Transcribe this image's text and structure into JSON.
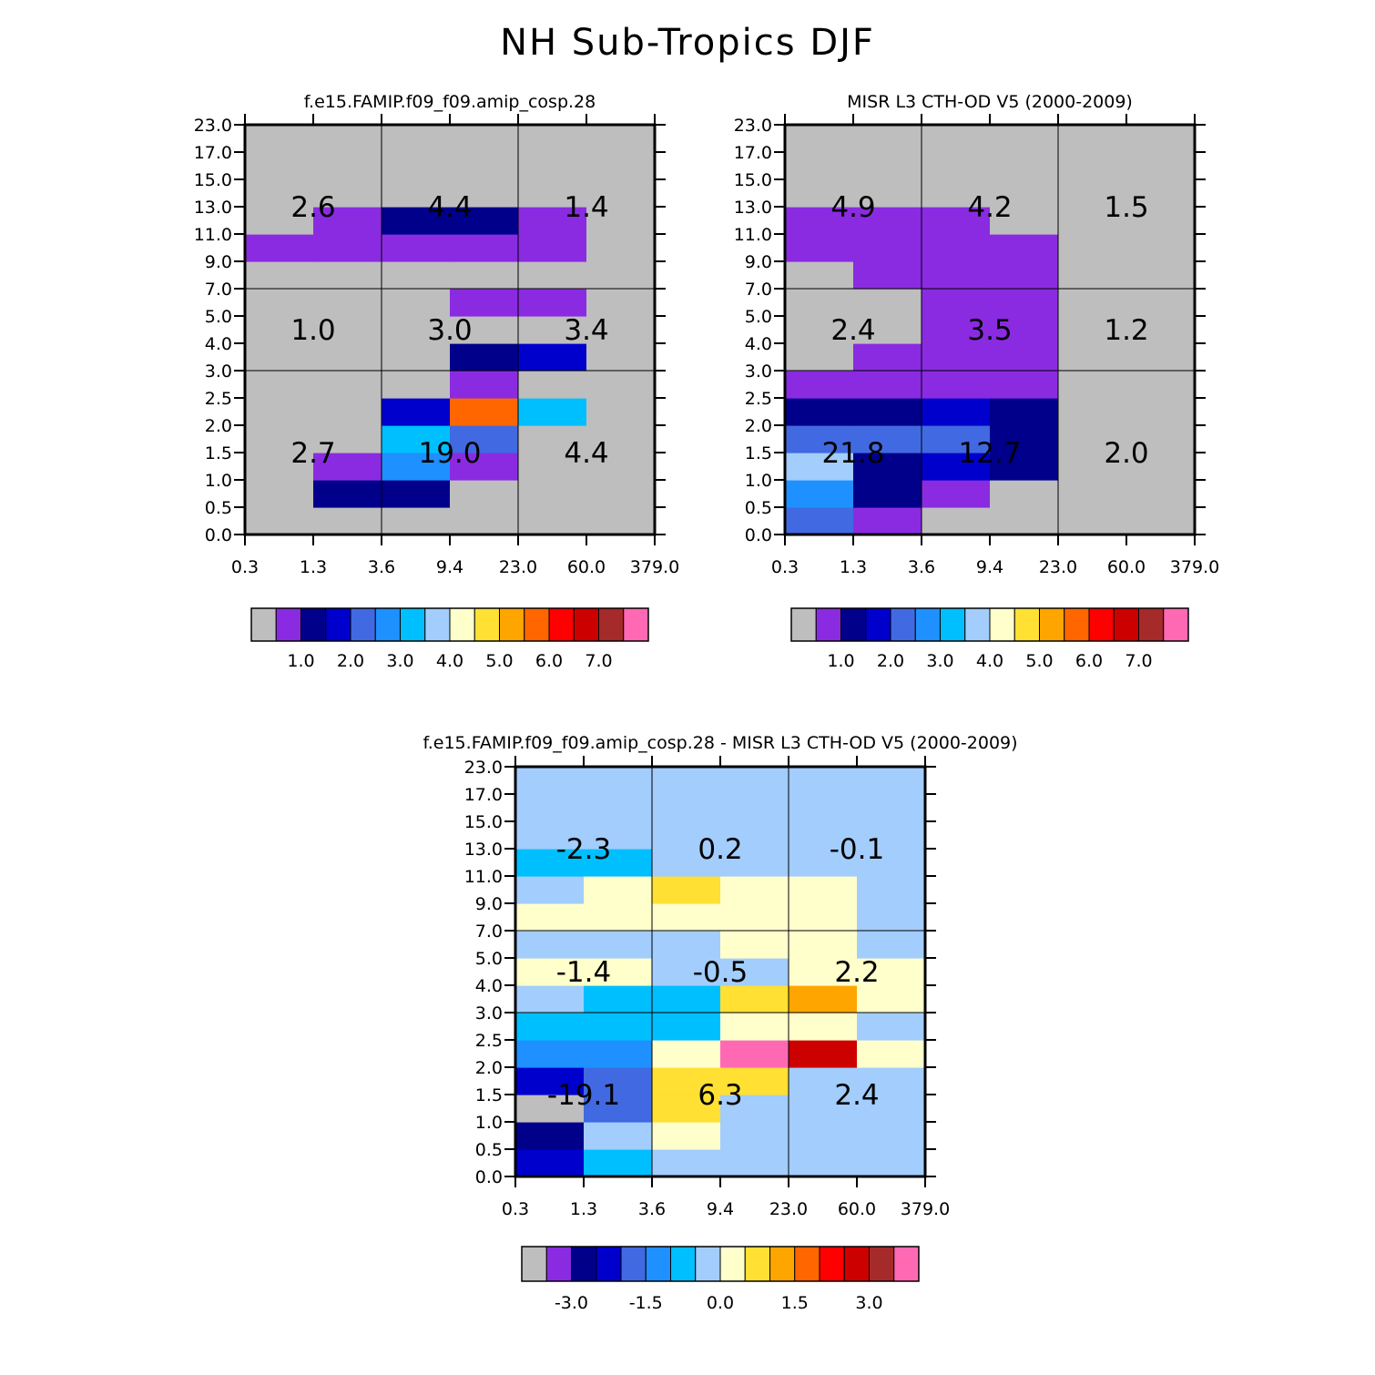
{
  "title": "NH Sub-Tropics DJF",
  "palette": [
    "#bebebe",
    "#8a2be2",
    "#00008b",
    "#0000cd",
    "#4169e1",
    "#1e90ff",
    "#00bfff",
    "#a2cdfc",
    "#ffffcc",
    "#ffe033",
    "#ffa500",
    "#ff6600",
    "#ff0000",
    "#cd0000",
    "#a52a2a",
    "#ff69b4"
  ],
  "chart_data": [
    {
      "type": "heatmap",
      "title": "f.e15.FAMIP.f09_f09.amip_cosp.28",
      "x_ticks": [
        "0.3",
        "1.3",
        "3.6",
        "9.4",
        "23.0",
        "60.0",
        "379.0"
      ],
      "y_ticks": [
        "0.0",
        "0.5",
        "1.0",
        "1.5",
        "2.0",
        "2.5",
        "3.0",
        "4.0",
        "5.0",
        "7.0",
        "9.0",
        "11.0",
        "13.0",
        "15.0",
        "17.0",
        "23.0"
      ],
      "cells_color_index_rows_bottom_to_top": [
        [
          0,
          0,
          0,
          0,
          0,
          0
        ],
        [
          0,
          2,
          2,
          0,
          0,
          0
        ],
        [
          0,
          1,
          5,
          1,
          0,
          0
        ],
        [
          0,
          0,
          6,
          4,
          0,
          0
        ],
        [
          0,
          0,
          3,
          11,
          6,
          0
        ],
        [
          0,
          0,
          0,
          1,
          0,
          0
        ],
        [
          0,
          0,
          0,
          2,
          3,
          0
        ],
        [
          0,
          0,
          0,
          0,
          0,
          0
        ],
        [
          0,
          0,
          0,
          1,
          1,
          0
        ],
        [
          0,
          0,
          0,
          0,
          0,
          0
        ],
        [
          1,
          1,
          1,
          1,
          1,
          0
        ],
        [
          0,
          1,
          2,
          2,
          1,
          0
        ],
        [
          0,
          0,
          0,
          0,
          0,
          0
        ],
        [
          0,
          0,
          0,
          0,
          0,
          0
        ],
        [
          0,
          0,
          0,
          0,
          0,
          0
        ]
      ],
      "block_totals": [
        [
          "2.7",
          "19.0",
          "4.4"
        ],
        [
          "1.0",
          "3.0",
          "3.4"
        ],
        [
          "2.6",
          "4.4",
          "1.4"
        ]
      ],
      "colorbar": {
        "n_boxes": 16,
        "labels": [
          "1.0",
          "2.0",
          "3.0",
          "4.0",
          "5.0",
          "6.0",
          "7.0"
        ],
        "first_label_boundary": 2
      }
    },
    {
      "type": "heatmap",
      "title": "MISR L3 CTH-OD V5 (2000-2009)",
      "x_ticks": [
        "0.3",
        "1.3",
        "3.6",
        "9.4",
        "23.0",
        "60.0",
        "379.0"
      ],
      "y_ticks": [
        "0.0",
        "0.5",
        "1.0",
        "1.5",
        "2.0",
        "2.5",
        "3.0",
        "4.0",
        "5.0",
        "7.0",
        "9.0",
        "11.0",
        "13.0",
        "15.0",
        "17.0",
        "23.0"
      ],
      "cells_color_index_rows_bottom_to_top": [
        [
          4,
          1,
          0,
          0,
          0,
          0
        ],
        [
          5,
          2,
          1,
          0,
          0,
          0
        ],
        [
          7,
          2,
          3,
          2,
          0,
          0
        ],
        [
          4,
          4,
          4,
          2,
          0,
          0
        ],
        [
          2,
          2,
          3,
          2,
          0,
          0
        ],
        [
          1,
          1,
          1,
          1,
          0,
          0
        ],
        [
          0,
          1,
          1,
          1,
          0,
          0
        ],
        [
          0,
          0,
          1,
          1,
          0,
          0
        ],
        [
          0,
          0,
          1,
          1,
          0,
          0
        ],
        [
          0,
          1,
          1,
          1,
          0,
          0
        ],
        [
          1,
          1,
          1,
          1,
          0,
          0
        ],
        [
          1,
          1,
          1,
          0,
          0,
          0
        ],
        [
          0,
          0,
          0,
          0,
          0,
          0
        ],
        [
          0,
          0,
          0,
          0,
          0,
          0
        ],
        [
          0,
          0,
          0,
          0,
          0,
          0
        ]
      ],
      "block_totals": [
        [
          "21.8",
          "12.7",
          "2.0"
        ],
        [
          "2.4",
          "3.5",
          "1.2"
        ],
        [
          "4.9",
          "4.2",
          "1.5"
        ]
      ],
      "colorbar": {
        "n_boxes": 16,
        "labels": [
          "1.0",
          "2.0",
          "3.0",
          "4.0",
          "5.0",
          "6.0",
          "7.0"
        ],
        "first_label_boundary": 2
      }
    },
    {
      "type": "heatmap",
      "title": "f.e15.FAMIP.f09_f09.amip_cosp.28 - MISR L3 CTH-OD V5 (2000-2009)",
      "x_ticks": [
        "0.3",
        "1.3",
        "3.6",
        "9.4",
        "23.0",
        "60.0",
        "379.0"
      ],
      "y_ticks": [
        "0.0",
        "0.5",
        "1.0",
        "1.5",
        "2.0",
        "2.5",
        "3.0",
        "4.0",
        "5.0",
        "7.0",
        "9.0",
        "11.0",
        "13.0",
        "15.0",
        "17.0",
        "23.0"
      ],
      "cells_color_index_rows_bottom_to_top": [
        [
          3,
          6,
          7,
          7,
          7,
          7
        ],
        [
          2,
          7,
          8,
          7,
          7,
          7
        ],
        [
          0,
          4,
          9,
          7,
          7,
          7
        ],
        [
          3,
          4,
          9,
          9,
          7,
          7
        ],
        [
          5,
          5,
          8,
          15,
          13,
          8
        ],
        [
          6,
          6,
          6,
          8,
          8,
          7
        ],
        [
          7,
          6,
          6,
          9,
          10,
          8
        ],
        [
          8,
          8,
          7,
          7,
          8,
          8
        ],
        [
          7,
          7,
          7,
          8,
          8,
          7
        ],
        [
          8,
          8,
          8,
          8,
          8,
          7
        ],
        [
          7,
          8,
          9,
          8,
          8,
          7
        ],
        [
          6,
          6,
          7,
          7,
          7,
          7
        ],
        [
          7,
          7,
          7,
          7,
          7,
          7
        ],
        [
          7,
          7,
          7,
          7,
          7,
          7
        ],
        [
          7,
          7,
          7,
          7,
          7,
          7
        ]
      ],
      "block_totals": [
        [
          "-19.1",
          "6.3",
          "2.4"
        ],
        [
          "-1.4",
          "-0.5",
          "2.2"
        ],
        [
          "-2.3",
          "0.2",
          "-0.1"
        ]
      ],
      "colorbar": {
        "n_boxes": 16,
        "labels": [
          "-3.0",
          "-1.5",
          "0.0",
          "1.5",
          "3.0"
        ],
        "first_label_boundary": 2
      }
    }
  ]
}
